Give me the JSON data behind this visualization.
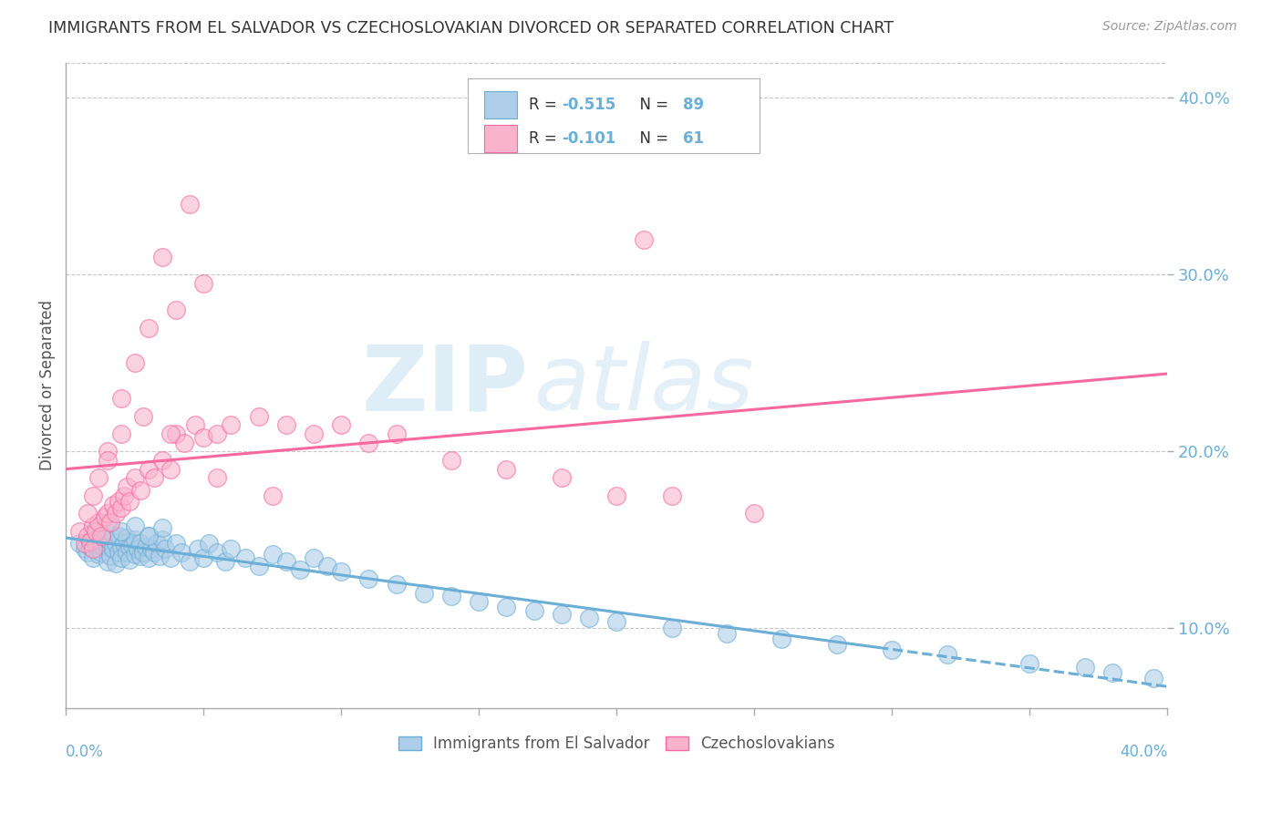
{
  "title": "IMMIGRANTS FROM EL SALVADOR VS CZECHOSLOVAKIAN DIVORCED OR SEPARATED CORRELATION CHART",
  "source": "Source: ZipAtlas.com",
  "ylabel": "Divorced or Separated",
  "ylabel_right_vals": [
    0.1,
    0.2,
    0.3,
    0.4
  ],
  "xmin": 0.0,
  "xmax": 0.4,
  "ymin": 0.055,
  "ymax": 0.42,
  "blue_R": -0.515,
  "blue_N": 89,
  "pink_R": -0.101,
  "pink_N": 61,
  "watermark_ZIP": "ZIP",
  "watermark_atlas": "atlas",
  "background_color": "#ffffff",
  "grid_color": "#c8c8c8",
  "blue_color": "#6baed6",
  "blue_fill": "#aecde8",
  "pink_color": "#f768a1",
  "pink_fill": "#f9b4cc",
  "trend_blue_solid_end": 0.295,
  "trend_blue_dashed_start": 0.295,
  "blue_x": [
    0.005,
    0.007,
    0.008,
    0.009,
    0.01,
    0.01,
    0.011,
    0.012,
    0.012,
    0.013,
    0.013,
    0.014,
    0.015,
    0.015,
    0.016,
    0.016,
    0.017,
    0.017,
    0.018,
    0.018,
    0.019,
    0.019,
    0.02,
    0.02,
    0.021,
    0.022,
    0.022,
    0.023,
    0.023,
    0.024,
    0.025,
    0.025,
    0.026,
    0.027,
    0.027,
    0.028,
    0.029,
    0.03,
    0.03,
    0.031,
    0.032,
    0.033,
    0.034,
    0.035,
    0.036,
    0.038,
    0.04,
    0.042,
    0.045,
    0.048,
    0.05,
    0.052,
    0.055,
    0.058,
    0.06,
    0.065,
    0.07,
    0.075,
    0.08,
    0.085,
    0.09,
    0.095,
    0.1,
    0.11,
    0.12,
    0.13,
    0.14,
    0.15,
    0.16,
    0.17,
    0.18,
    0.19,
    0.2,
    0.22,
    0.24,
    0.26,
    0.28,
    0.3,
    0.32,
    0.35,
    0.37,
    0.38,
    0.395,
    0.01,
    0.015,
    0.02,
    0.025,
    0.03,
    0.035
  ],
  "blue_y": [
    0.148,
    0.145,
    0.143,
    0.146,
    0.15,
    0.14,
    0.148,
    0.142,
    0.15,
    0.147,
    0.143,
    0.151,
    0.146,
    0.138,
    0.149,
    0.141,
    0.145,
    0.153,
    0.148,
    0.137,
    0.143,
    0.152,
    0.146,
    0.14,
    0.148,
    0.143,
    0.151,
    0.146,
    0.139,
    0.147,
    0.142,
    0.15,
    0.145,
    0.141,
    0.148,
    0.143,
    0.146,
    0.14,
    0.152,
    0.145,
    0.143,
    0.148,
    0.141,
    0.15,
    0.145,
    0.14,
    0.148,
    0.143,
    0.138,
    0.145,
    0.14,
    0.148,
    0.143,
    0.138,
    0.145,
    0.14,
    0.135,
    0.142,
    0.138,
    0.133,
    0.14,
    0.135,
    0.132,
    0.128,
    0.125,
    0.12,
    0.118,
    0.115,
    0.112,
    0.11,
    0.108,
    0.106,
    0.104,
    0.1,
    0.097,
    0.094,
    0.091,
    0.088,
    0.085,
    0.08,
    0.078,
    0.075,
    0.072,
    0.155,
    0.16,
    0.155,
    0.158,
    0.152,
    0.157
  ],
  "pink_x": [
    0.005,
    0.007,
    0.008,
    0.009,
    0.01,
    0.01,
    0.011,
    0.012,
    0.013,
    0.014,
    0.015,
    0.016,
    0.017,
    0.018,
    0.019,
    0.02,
    0.021,
    0.022,
    0.023,
    0.025,
    0.027,
    0.03,
    0.032,
    0.035,
    0.038,
    0.04,
    0.043,
    0.047,
    0.05,
    0.055,
    0.06,
    0.07,
    0.08,
    0.09,
    0.1,
    0.11,
    0.12,
    0.14,
    0.16,
    0.18,
    0.2,
    0.21,
    0.22,
    0.25,
    0.03,
    0.035,
    0.04,
    0.045,
    0.05,
    0.02,
    0.025,
    0.015,
    0.012,
    0.008,
    0.01,
    0.015,
    0.02,
    0.028,
    0.038,
    0.055,
    0.075
  ],
  "pink_y": [
    0.155,
    0.148,
    0.152,
    0.149,
    0.158,
    0.145,
    0.155,
    0.16,
    0.152,
    0.163,
    0.165,
    0.16,
    0.17,
    0.165,
    0.172,
    0.168,
    0.175,
    0.18,
    0.172,
    0.185,
    0.178,
    0.19,
    0.185,
    0.195,
    0.19,
    0.21,
    0.205,
    0.215,
    0.208,
    0.21,
    0.215,
    0.22,
    0.215,
    0.21,
    0.215,
    0.205,
    0.21,
    0.195,
    0.19,
    0.185,
    0.175,
    0.32,
    0.175,
    0.165,
    0.27,
    0.31,
    0.28,
    0.34,
    0.295,
    0.23,
    0.25,
    0.2,
    0.185,
    0.165,
    0.175,
    0.195,
    0.21,
    0.22,
    0.21,
    0.185,
    0.175
  ]
}
